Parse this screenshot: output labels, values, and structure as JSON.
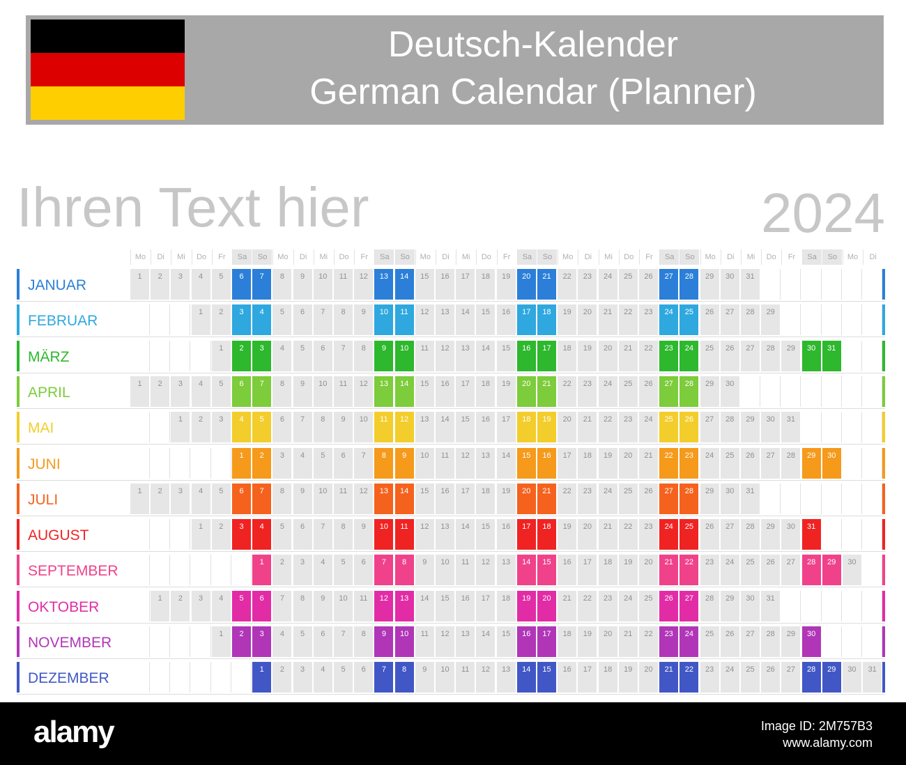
{
  "header": {
    "title_line1": "Deutsch-Kalender",
    "title_line2": "German Calendar (Planner)"
  },
  "subtitle": "Ihren Text hier",
  "year": "2024",
  "day_headers": [
    "Mo",
    "Di",
    "Mi",
    "Do",
    "Fr",
    "Sa",
    "So",
    "Mo",
    "Di",
    "Mi",
    "Do",
    "Fr",
    "Sa",
    "So",
    "Mo",
    "Di",
    "Mi",
    "Do",
    "Fr",
    "Sa",
    "So",
    "Mo",
    "Di",
    "Mi",
    "Do",
    "Fr",
    "Sa",
    "So",
    "Mo",
    "Di",
    "Mi",
    "Do",
    "Fr",
    "Sa",
    "So",
    "Mo",
    "Di"
  ],
  "months": [
    {
      "name": "JANUAR",
      "color": "#2b7fd8",
      "offset": 0,
      "days": 31
    },
    {
      "name": "FEBRUAR",
      "color": "#2ea8df",
      "offset": 3,
      "days": 29
    },
    {
      "name": "MÄRZ",
      "color": "#2db82d",
      "offset": 4,
      "days": 31
    },
    {
      "name": "APRIL",
      "color": "#7ccc3b",
      "offset": 0,
      "days": 30
    },
    {
      "name": "MAI",
      "color": "#f3cd2b",
      "offset": 2,
      "days": 31
    },
    {
      "name": "JUNI",
      "color": "#f59a1b",
      "offset": 5,
      "days": 30
    },
    {
      "name": "JULI",
      "color": "#f5621e",
      "offset": 0,
      "days": 31
    },
    {
      "name": "AUGUST",
      "color": "#f02323",
      "offset": 3,
      "days": 31
    },
    {
      "name": "SEPTEMBER",
      "color": "#f0428a",
      "offset": 6,
      "days": 30
    },
    {
      "name": "OKTOBER",
      "color": "#e22ca6",
      "offset": 1,
      "days": 31
    },
    {
      "name": "NOVEMBER",
      "color": "#b036b7",
      "offset": 4,
      "days": 30
    },
    {
      "name": "DEZEMBER",
      "color": "#4257c6",
      "offset": 6,
      "days": 31
    }
  ],
  "footer": {
    "logo": "alamy",
    "image_id": "Image ID: 2M757B3",
    "site": "www.alamy.com"
  }
}
